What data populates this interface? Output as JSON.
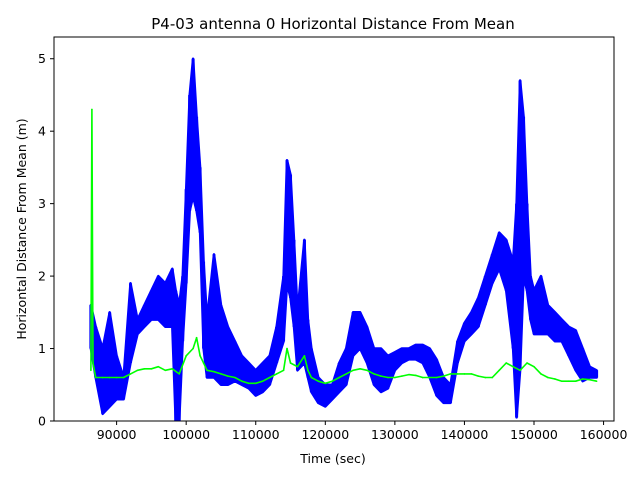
{
  "chart_data": {
    "type": "line",
    "title": "P4-03 antenna 0 Horizontal Distance From Mean",
    "xlabel": "Time (sec)",
    "ylabel": "Horizontal Distance From Mean (m)",
    "xlim": [
      81000,
      161500
    ],
    "ylim": [
      0,
      5.3
    ],
    "x_ticks": [
      90000,
      100000,
      110000,
      120000,
      130000,
      140000,
      150000,
      160000
    ],
    "x_tick_labels": [
      "90000",
      "100000",
      "110000",
      "120000",
      "130000",
      "140000",
      "150000",
      "160000"
    ],
    "y_ticks": [
      0,
      1,
      2,
      3,
      4,
      5
    ],
    "y_tick_labels": [
      "0",
      "1",
      "2",
      "3",
      "4",
      "5"
    ],
    "grid": false,
    "legend": "none",
    "series": [
      {
        "color": "#0000ff",
        "style": "band",
        "x": [
          86300,
          87000,
          88000,
          89000,
          90000,
          91000,
          92000,
          93000,
          94000,
          95000,
          96000,
          97000,
          98000,
          98500,
          99000,
          99500,
          100000,
          100500,
          101000,
          101500,
          102000,
          102500,
          103000,
          104000,
          105000,
          106000,
          107000,
          108000,
          109000,
          110000,
          111000,
          112000,
          113000,
          114000,
          114500,
          115000,
          115500,
          116000,
          117000,
          117500,
          118000,
          119000,
          120000,
          121000,
          122000,
          123000,
          124000,
          125000,
          126000,
          127000,
          128000,
          129000,
          130000,
          131000,
          132000,
          133000,
          134000,
          135000,
          136000,
          137000,
          138000,
          139000,
          140000,
          141000,
          142000,
          143000,
          144000,
          145000,
          146000,
          147000,
          147500,
          148000,
          148500,
          149000,
          149500,
          150000,
          151000,
          152000,
          153000,
          154000,
          155000,
          156000,
          157000,
          158000,
          159000
        ],
        "high": [
          1.6,
          1.3,
          1.0,
          1.5,
          0.9,
          0.6,
          1.9,
          1.4,
          1.6,
          1.8,
          2.0,
          1.9,
          2.1,
          1.8,
          1.6,
          2.0,
          3.2,
          4.5,
          5.0,
          4.2,
          3.5,
          2.2,
          1.4,
          2.3,
          1.6,
          1.3,
          1.1,
          0.9,
          0.8,
          0.7,
          0.8,
          0.9,
          1.3,
          2.0,
          3.6,
          3.4,
          2.5,
          1.5,
          2.5,
          1.4,
          1.0,
          0.6,
          0.5,
          0.5,
          0.8,
          1.0,
          1.5,
          1.5,
          1.3,
          1.0,
          1.0,
          0.9,
          0.95,
          1.0,
          1.0,
          1.05,
          1.05,
          1.0,
          0.85,
          0.6,
          0.5,
          1.1,
          1.35,
          1.5,
          1.7,
          2.0,
          2.3,
          2.6,
          2.5,
          2.2,
          3.0,
          4.7,
          4.2,
          3.0,
          2.0,
          1.8,
          2.0,
          1.6,
          1.5,
          1.4,
          1.3,
          1.25,
          1.0,
          0.75,
          0.7
        ],
        "low": [
          1.0,
          0.6,
          0.1,
          0.2,
          0.3,
          0.3,
          0.8,
          1.2,
          1.3,
          1.4,
          1.4,
          1.3,
          1.3,
          0.0,
          0.0,
          1.1,
          1.9,
          2.9,
          3.1,
          2.9,
          2.6,
          1.0,
          0.6,
          0.6,
          0.5,
          0.5,
          0.55,
          0.5,
          0.45,
          0.35,
          0.4,
          0.5,
          0.8,
          1.1,
          1.9,
          1.7,
          1.3,
          0.7,
          0.8,
          0.6,
          0.4,
          0.25,
          0.2,
          0.3,
          0.4,
          0.5,
          0.9,
          1.0,
          0.8,
          0.5,
          0.4,
          0.45,
          0.7,
          0.8,
          0.85,
          0.85,
          0.8,
          0.6,
          0.35,
          0.25,
          0.25,
          0.8,
          1.1,
          1.2,
          1.3,
          1.6,
          1.9,
          2.1,
          1.8,
          1.0,
          0.05,
          0.7,
          2.0,
          1.8,
          1.4,
          1.2,
          1.2,
          1.2,
          1.1,
          1.1,
          0.9,
          0.7,
          0.55,
          0.6,
          0.6
        ]
      },
      {
        "color": "#00ff00",
        "style": "line",
        "x": [
          86300,
          86450,
          86600,
          87000,
          88000,
          89000,
          90000,
          91000,
          92000,
          93000,
          94000,
          95000,
          96000,
          97000,
          98000,
          99000,
          100000,
          101000,
          101500,
          102000,
          102500,
          103000,
          104000,
          105000,
          106000,
          107000,
          108000,
          109000,
          110000,
          111000,
          112000,
          113000,
          114000,
          114500,
          115000,
          116000,
          117000,
          117500,
          118000,
          119000,
          120000,
          121000,
          122000,
          123000,
          124000,
          125000,
          126000,
          127000,
          128000,
          129000,
          130000,
          131000,
          132000,
          133000,
          134000,
          135000,
          136000,
          137000,
          138000,
          139000,
          140000,
          141000,
          142000,
          143000,
          144000,
          145000,
          146000,
          147000,
          148000,
          149000,
          150000,
          151000,
          152000,
          153000,
          154000,
          155000,
          156000,
          157000,
          158000,
          159000
        ],
        "y": [
          0.7,
          4.3,
          0.8,
          0.6,
          0.6,
          0.6,
          0.6,
          0.6,
          0.65,
          0.7,
          0.72,
          0.72,
          0.75,
          0.7,
          0.72,
          0.65,
          0.9,
          1.0,
          1.15,
          0.9,
          0.8,
          0.7,
          0.68,
          0.65,
          0.62,
          0.6,
          0.55,
          0.52,
          0.52,
          0.55,
          0.6,
          0.65,
          0.7,
          1.0,
          0.8,
          0.75,
          0.9,
          0.7,
          0.6,
          0.55,
          0.52,
          0.55,
          0.6,
          0.65,
          0.7,
          0.72,
          0.7,
          0.65,
          0.62,
          0.6,
          0.6,
          0.62,
          0.64,
          0.63,
          0.6,
          0.6,
          0.6,
          0.62,
          0.65,
          0.65,
          0.65,
          0.65,
          0.62,
          0.6,
          0.6,
          0.7,
          0.8,
          0.75,
          0.7,
          0.8,
          0.75,
          0.65,
          0.6,
          0.58,
          0.55,
          0.55,
          0.55,
          0.58,
          0.57,
          0.55
        ]
      }
    ]
  }
}
